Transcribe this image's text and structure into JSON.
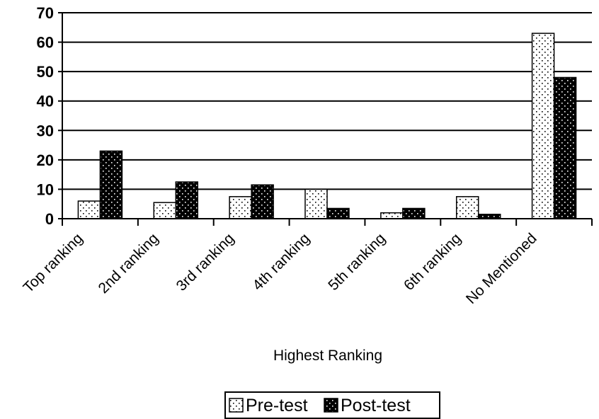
{
  "chart_data": {
    "type": "bar",
    "title": "",
    "xlabel": "Highest Ranking",
    "ylabel": "",
    "ylim": [
      0,
      70
    ],
    "yticks": [
      0,
      10,
      20,
      30,
      40,
      50,
      60,
      70
    ],
    "grid": true,
    "legend_position": "bottom",
    "categories": [
      "Top ranking",
      "2nd ranking",
      "3rd ranking",
      "4th ranking",
      "5th ranking",
      "6th ranking",
      "No Mentioned"
    ],
    "series": [
      {
        "name": "Pre-test",
        "pattern": "light-dotted",
        "color": "#ffffff",
        "values": [
          6,
          5.5,
          7.5,
          10,
          2,
          7.5,
          63
        ]
      },
      {
        "name": "Post-test",
        "pattern": "dark-dotted",
        "color": "#000000",
        "values": [
          23,
          12.5,
          11.5,
          3.5,
          3.5,
          1.5,
          48
        ]
      }
    ]
  }
}
